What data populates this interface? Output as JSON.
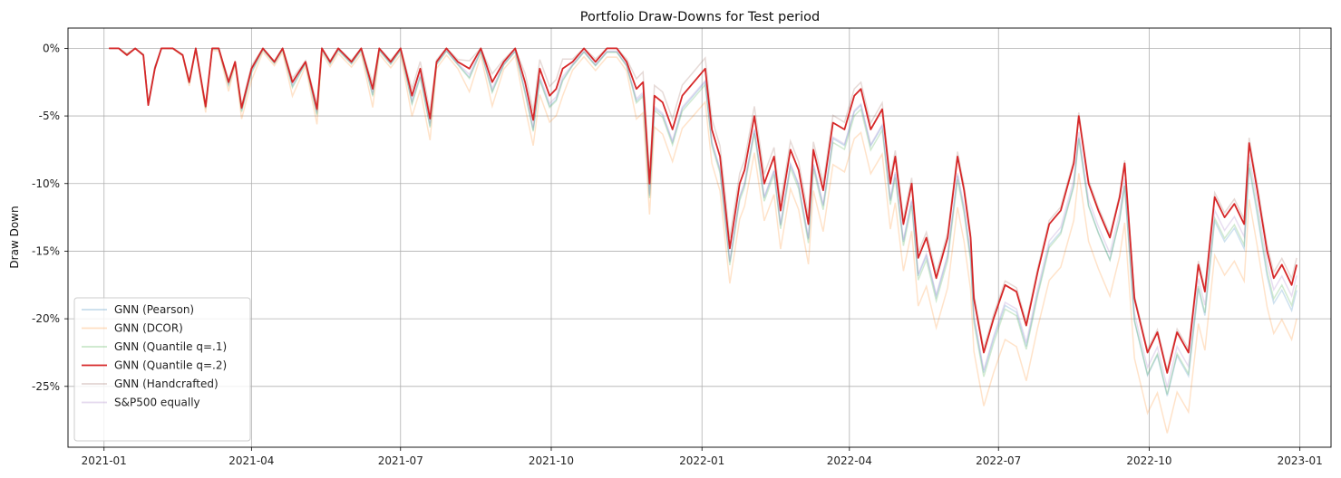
{
  "chart_data": {
    "type": "line",
    "title": "Portfolio Draw-Downs for Test period",
    "xlabel": "",
    "ylabel": "Draw Down",
    "grid": true,
    "legend_position": "lower-left",
    "x_range": [
      "2020-12-10",
      "2023-01-20"
    ],
    "ylim": [
      -29.5,
      1.5
    ],
    "x_ticks": [
      {
        "date": "2021-01-01",
        "label": "2021-01"
      },
      {
        "date": "2021-04-01",
        "label": "2021-04"
      },
      {
        "date": "2021-07-01",
        "label": "2021-07"
      },
      {
        "date": "2021-10-01",
        "label": "2021-10"
      },
      {
        "date": "2022-01-01",
        "label": "2022-01"
      },
      {
        "date": "2022-04-01",
        "label": "2022-04"
      },
      {
        "date": "2022-07-01",
        "label": "2022-07"
      },
      {
        "date": "2022-10-01",
        "label": "2022-10"
      },
      {
        "date": "2023-01-01",
        "label": "2023-01"
      }
    ],
    "y_ticks": [
      {
        "value": 0,
        "label": "0%"
      },
      {
        "value": -5,
        "label": "-5%"
      },
      {
        "value": -10,
        "label": "-10%"
      },
      {
        "value": -15,
        "label": "-15%"
      },
      {
        "value": -20,
        "label": "-20%"
      },
      {
        "value": -25,
        "label": "-25%"
      }
    ],
    "series": [
      {
        "name": "GNN (Quantile q=.2)",
        "color": "#d62728",
        "opacity": 1.0,
        "x": [
          "2021-01-04",
          "2021-01-10",
          "2021-01-15",
          "2021-01-20",
          "2021-01-25",
          "2021-01-28",
          "2021-02-01",
          "2021-02-05",
          "2021-02-12",
          "2021-02-18",
          "2021-02-22",
          "2021-02-26",
          "2021-03-04",
          "2021-03-08",
          "2021-03-12",
          "2021-03-18",
          "2021-03-22",
          "2021-03-26",
          "2021-04-01",
          "2021-04-08",
          "2021-04-15",
          "2021-04-20",
          "2021-04-26",
          "2021-05-04",
          "2021-05-11",
          "2021-05-14",
          "2021-05-19",
          "2021-05-24",
          "2021-06-01",
          "2021-06-07",
          "2021-06-14",
          "2021-06-18",
          "2021-06-25",
          "2021-07-01",
          "2021-07-08",
          "2021-07-13",
          "2021-07-19",
          "2021-07-23",
          "2021-07-29",
          "2021-08-05",
          "2021-08-12",
          "2021-08-19",
          "2021-08-26",
          "2021-09-02",
          "2021-09-09",
          "2021-09-15",
          "2021-09-20",
          "2021-09-24",
          "2021-09-30",
          "2021-10-04",
          "2021-10-08",
          "2021-10-14",
          "2021-10-21",
          "2021-10-28",
          "2021-11-04",
          "2021-11-10",
          "2021-11-16",
          "2021-11-22",
          "2021-11-26",
          "2021-11-30",
          "2021-12-03",
          "2021-12-08",
          "2021-12-14",
          "2021-12-20",
          "2021-12-27",
          "2022-01-03",
          "2022-01-07",
          "2022-01-12",
          "2022-01-18",
          "2022-01-24",
          "2022-01-27",
          "2022-02-02",
          "2022-02-08",
          "2022-02-14",
          "2022-02-18",
          "2022-02-24",
          "2022-03-01",
          "2022-03-07",
          "2022-03-10",
          "2022-03-16",
          "2022-03-22",
          "2022-03-29",
          "2022-04-04",
          "2022-04-08",
          "2022-04-14",
          "2022-04-21",
          "2022-04-26",
          "2022-04-29",
          "2022-05-04",
          "2022-05-09",
          "2022-05-13",
          "2022-05-18",
          "2022-05-24",
          "2022-05-31",
          "2022-06-06",
          "2022-06-10",
          "2022-06-14",
          "2022-06-16",
          "2022-06-22",
          "2022-06-28",
          "2022-07-05",
          "2022-07-12",
          "2022-07-18",
          "2022-07-25",
          "2022-08-01",
          "2022-08-08",
          "2022-08-16",
          "2022-08-19",
          "2022-08-25",
          "2022-08-31",
          "2022-09-07",
          "2022-09-13",
          "2022-09-16",
          "2022-09-22",
          "2022-09-28",
          "2022-09-30",
          "2022-10-06",
          "2022-10-12",
          "2022-10-18",
          "2022-10-25",
          "2022-10-31",
          "2022-11-04",
          "2022-11-10",
          "2022-11-16",
          "2022-11-22",
          "2022-11-28",
          "2022-12-01",
          "2022-12-06",
          "2022-12-12",
          "2022-12-16",
          "2022-12-21",
          "2022-12-27",
          "2022-12-30"
        ],
        "values": [
          0,
          0,
          -0.5,
          0,
          -0.5,
          -4.2,
          -1.5,
          0,
          0,
          -0.5,
          -2.5,
          0,
          -4.3,
          0,
          0,
          -2.5,
          -1.0,
          -4.4,
          -1.5,
          0,
          -1.0,
          0,
          -2.5,
          -1.0,
          -4.5,
          0,
          -1.0,
          0,
          -1.0,
          0,
          -3.0,
          0,
          -1.0,
          0,
          -3.5,
          -1.5,
          -5.2,
          -1.0,
          0,
          -1.0,
          -1.5,
          0,
          -2.5,
          -1.0,
          0,
          -2.5,
          -5.3,
          -1.5,
          -3.5,
          -3.0,
          -1.5,
          -1.0,
          0,
          -1.0,
          0,
          0,
          -1.0,
          -3.0,
          -2.5,
          -10.0,
          -3.5,
          -4.0,
          -6.0,
          -3.5,
          -2.5,
          -1.5,
          -6.0,
          -8.0,
          -14.8,
          -10.0,
          -9.0,
          -5.0,
          -10.0,
          -8.0,
          -12.0,
          -7.5,
          -9.0,
          -13.0,
          -7.5,
          -10.5,
          -5.5,
          -6.0,
          -3.5,
          -3.0,
          -6.0,
          -4.5,
          -10.0,
          -8.0,
          -13.0,
          -10.0,
          -15.5,
          -14.0,
          -17.0,
          -14.0,
          -8.0,
          -10.5,
          -14.0,
          -18.5,
          -22.5,
          -20.0,
          -17.5,
          -18.0,
          -20.5,
          -16.5,
          -13.0,
          -12.0,
          -8.5,
          -5.0,
          -10.0,
          -12.0,
          -14.0,
          -11.0,
          -8.5,
          -18.5,
          -21.5,
          -22.5,
          -21.0,
          -24.0,
          -21.0,
          -22.5,
          -16.0,
          -18.0,
          -11.0,
          -12.5,
          -11.5,
          -13.0,
          -7.0,
          -10.5,
          -15.0,
          -17.0,
          -16.0,
          -17.5,
          -16.0
        ]
      }
    ],
    "legend": [
      {
        "label": "GNN (Pearson)",
        "color": "#1f77b4",
        "opacity": 0.25
      },
      {
        "label": "GNN (DCOR)",
        "color": "#ff7f0e",
        "opacity": 0.25
      },
      {
        "label": "GNN (Quantile q=.1)",
        "color": "#2ca02c",
        "opacity": 0.25
      },
      {
        "label": "GNN (Quantile q=.2)",
        "color": "#d62728",
        "opacity": 1.0
      },
      {
        "label": "GNN (Handcrafted)",
        "color": "#8c564b",
        "opacity": 0.25
      },
      {
        "label": "S&P500 equally",
        "color": "#9467bd",
        "opacity": 0.25
      }
    ],
    "background_series": [
      {
        "name": "GNN (Pearson)",
        "color": "#1f77b4",
        "offset": [
          0.3,
          -0.2,
          -0.5,
          -0.8,
          -1.0,
          -1.2,
          -1.5,
          -1.7,
          -1.9
        ]
      },
      {
        "name": "GNN (DCOR)",
        "color": "#ff7f0e",
        "offset": [
          0.5,
          -0.8,
          -1.5,
          -2.0,
          -2.5,
          -3.2,
          -4.0,
          -4.5,
          -4.0
        ]
      },
      {
        "name": "GNN (Quantile q=.1)",
        "color": "#2ca02c",
        "offset": [
          0.2,
          -0.3,
          -0.6,
          -0.9,
          -1.2,
          -1.5,
          -1.8,
          -1.6,
          -1.5
        ]
      },
      {
        "name": "GNN (Handcrafted)",
        "color": "#8c564b",
        "offset": [
          0.1,
          0.2,
          0.5,
          0.7,
          0.8,
          0.5,
          0.3,
          0.2,
          0.5
        ]
      },
      {
        "name": "S&P500 equally",
        "color": "#9467bd",
        "offset": [
          0.0,
          -0.1,
          -0.3,
          -0.6,
          -0.9,
          -1.1,
          -1.3,
          -1.1,
          -0.8
        ]
      }
    ]
  }
}
